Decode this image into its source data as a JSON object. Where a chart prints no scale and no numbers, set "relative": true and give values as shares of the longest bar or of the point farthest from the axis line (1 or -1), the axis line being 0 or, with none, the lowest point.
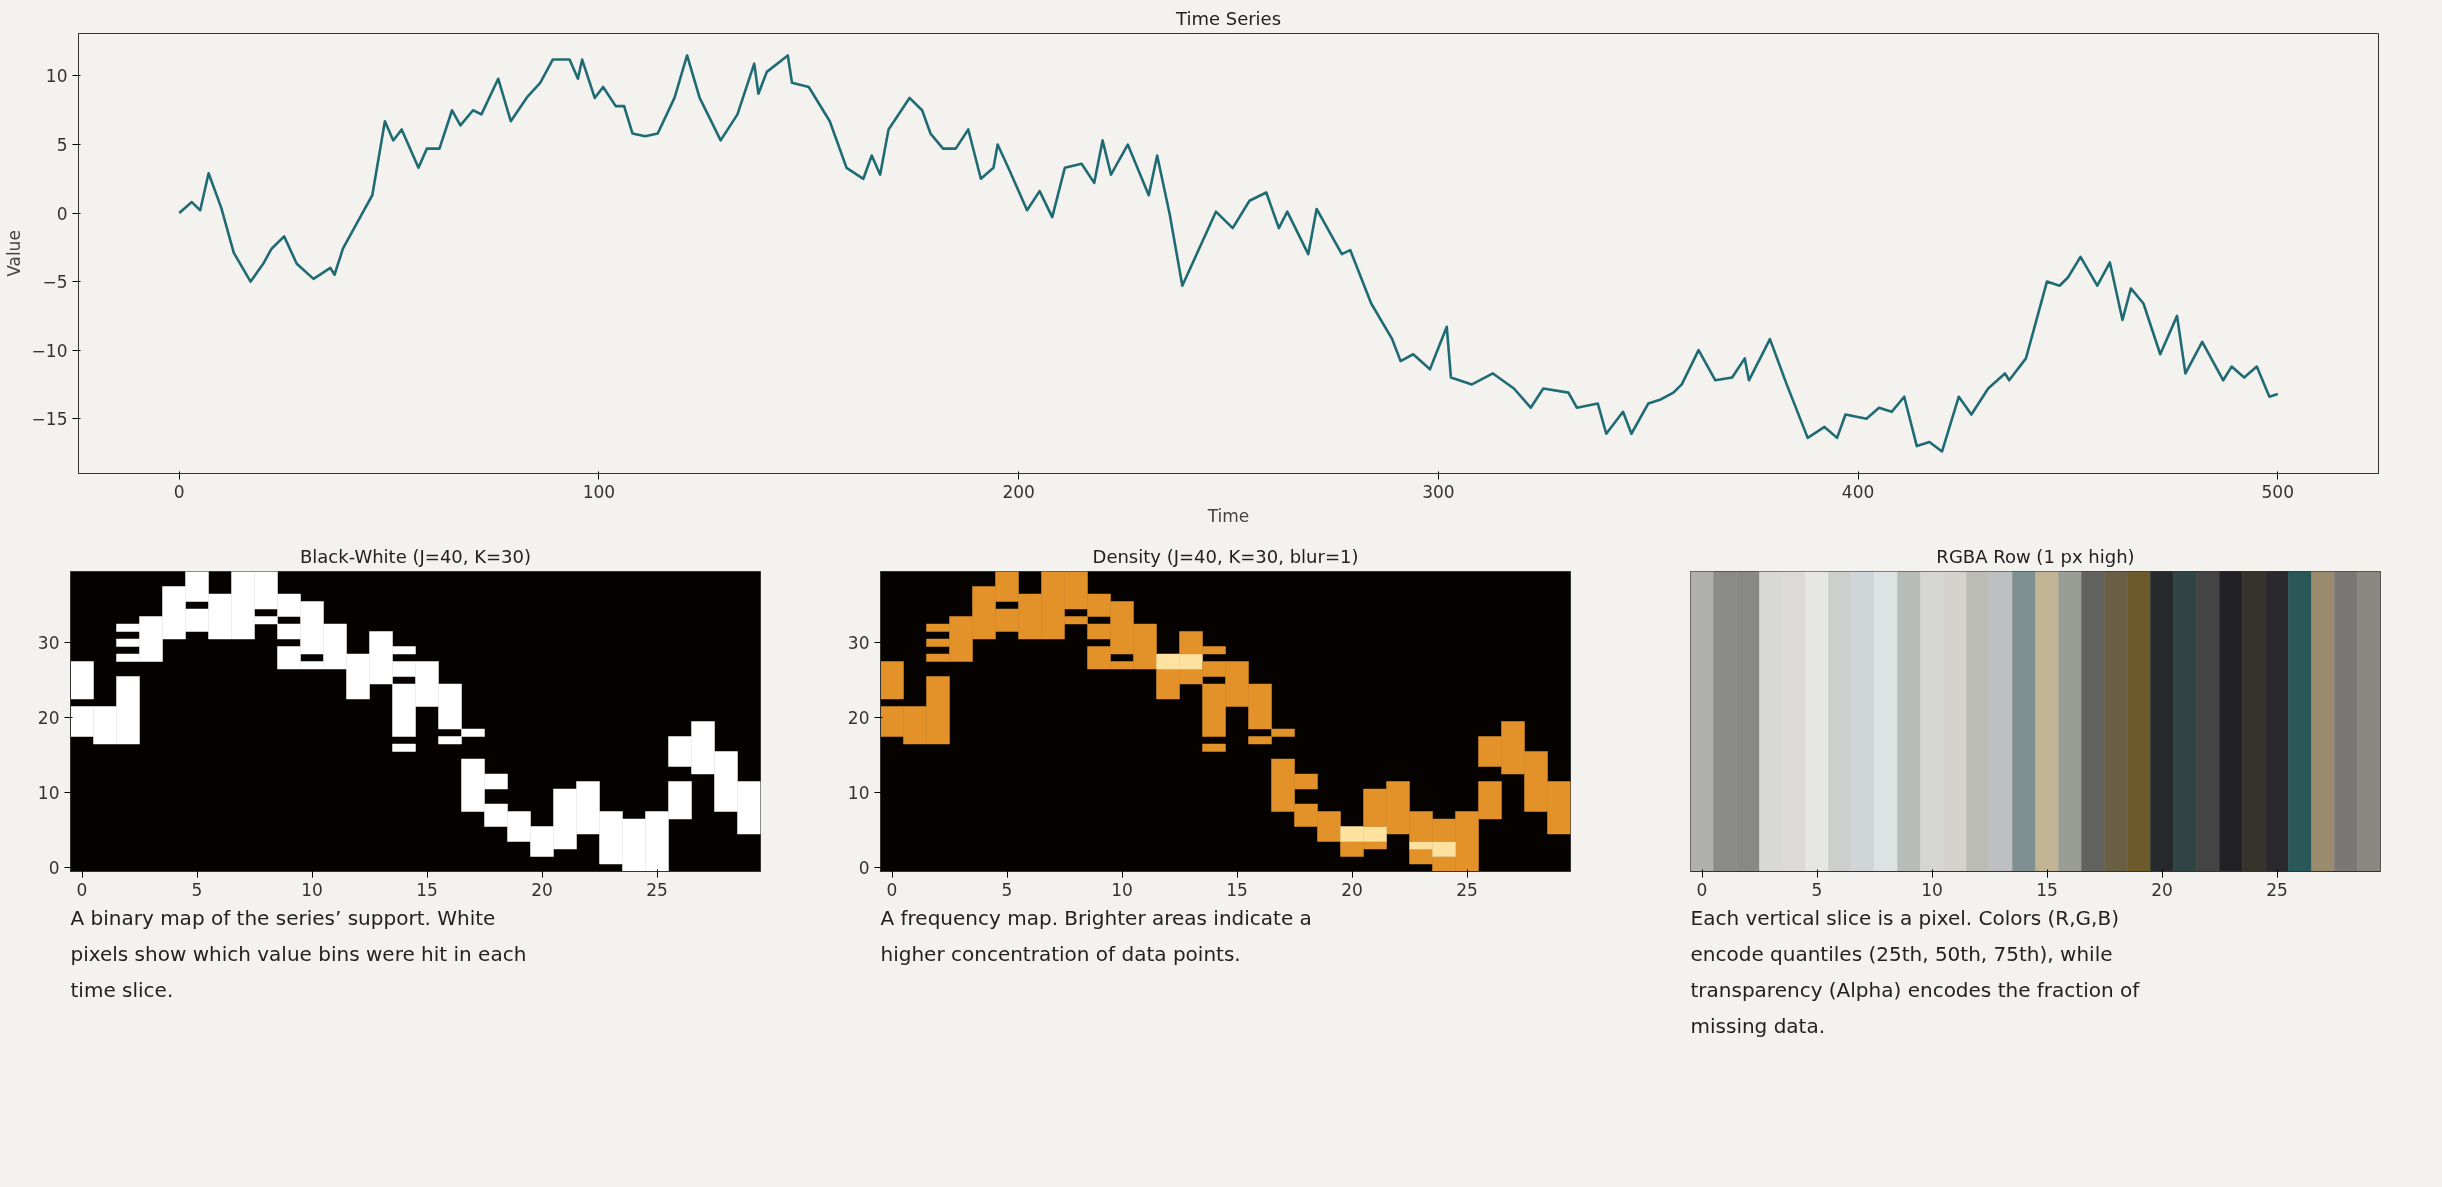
{
  "chart_data": [
    {
      "type": "line",
      "title": "Time Series",
      "xlabel": "Time",
      "ylabel": "Value",
      "xlim": [
        -24,
        524
      ],
      "ylim": [
        -19,
        13.1
      ],
      "xticks": [
        0,
        100,
        200,
        300,
        400,
        500
      ],
      "yticks": [
        {
          "value": -15,
          "label": "−15"
        },
        {
          "value": -10,
          "label": "−10"
        },
        {
          "value": -5,
          "label": "−5"
        },
        0,
        5,
        10
      ],
      "series": [
        {
          "color": "#1f6b74",
          "x": [
            0,
            3,
            5,
            7,
            10,
            13,
            17,
            20,
            22,
            25,
            28,
            32,
            36,
            37,
            39,
            44,
            46,
            49,
            51,
            53,
            57,
            59,
            62,
            65,
            67,
            70,
            72,
            76,
            79,
            83,
            86,
            89,
            93,
            95,
            96,
            99,
            101,
            104,
            106,
            108,
            111,
            114,
            118,
            121,
            124,
            129,
            133,
            137,
            138,
            140,
            145,
            146,
            150,
            155,
            159,
            163,
            165,
            167,
            169,
            174,
            177,
            179,
            182,
            185,
            188,
            191,
            194,
            195,
            198,
            202,
            205,
            208,
            211,
            215,
            218,
            220,
            222,
            226,
            231,
            233,
            236,
            239,
            247,
            251,
            255,
            259,
            262,
            264,
            269,
            271,
            277,
            279,
            284,
            289,
            291,
            294,
            298,
            302,
            303,
            308,
            313,
            318,
            322,
            325,
            331,
            333,
            338,
            340,
            344,
            346,
            350,
            353,
            356,
            358,
            362,
            366,
            370,
            373,
            374,
            379,
            383,
            388,
            392,
            395,
            397,
            402,
            405,
            408,
            411,
            414,
            417,
            420,
            424,
            427,
            431,
            435,
            436,
            440,
            445,
            448,
            450,
            453,
            457,
            460,
            463,
            465,
            468,
            472,
            476,
            478,
            482,
            487,
            489,
            492,
            495,
            498,
            500
          ],
          "values": [
            0,
            0.8,
            0.2,
            2.9,
            0.4,
            -2.9,
            -5,
            -3.7,
            -2.6,
            -1.7,
            -3.7,
            -4.8,
            -4,
            -4.5,
            -2.6,
            0.2,
            1.3,
            6.7,
            5.3,
            6.1,
            3.3,
            4.7,
            4.7,
            7.5,
            6.4,
            7.5,
            7.2,
            9.8,
            6.7,
            8.5,
            9.5,
            11.2,
            11.2,
            9.8,
            11.2,
            8.4,
            9.2,
            7.8,
            7.8,
            5.8,
            5.6,
            5.8,
            8.4,
            11.5,
            8.4,
            5.3,
            7.2,
            10.9,
            8.7,
            10.3,
            11.5,
            9.5,
            9.2,
            6.7,
            3.3,
            2.5,
            4.2,
            2.8,
            6.1,
            8.4,
            7.5,
            5.8,
            4.7,
            4.7,
            6.1,
            2.5,
            3.3,
            5,
            3,
            0.2,
            1.6,
            -0.3,
            3.3,
            3.6,
            2.2,
            5.3,
            2.8,
            5,
            1.3,
            4.2,
            -0.1,
            -5.3,
            0.1,
            -1.1,
            0.9,
            1.5,
            -1.1,
            0.1,
            -3,
            0.3,
            -3,
            -2.7,
            -6.6,
            -9.2,
            -10.8,
            -10.3,
            -11.4,
            -8.3,
            -12,
            -12.5,
            -11.7,
            -12.8,
            -14.2,
            -12.8,
            -13.1,
            -14.2,
            -13.9,
            -16.1,
            -14.5,
            -16.1,
            -13.9,
            -13.6,
            -13.1,
            -12.5,
            -10,
            -12.2,
            -12,
            -10.6,
            -12.2,
            -9.2,
            -12.5,
            -16.4,
            -15.6,
            -16.4,
            -14.7,
            -15,
            -14.2,
            -14.5,
            -13.4,
            -17,
            -16.7,
            -17.4,
            -13.4,
            -14.7,
            -12.8,
            -11.7,
            -12.2,
            -10.6,
            -5,
            -5.3,
            -4.7,
            -3.2,
            -5.3,
            -3.6,
            -7.8,
            -5.5,
            -6.6,
            -10.3,
            -7.5,
            -11.7,
            -9.4,
            -12.2,
            -11.2,
            -12,
            -11.2,
            -13.4,
            -13.2
          ]
        }
      ]
    },
    {
      "type": "bar",
      "title": "Black-White (J=40, K=30)",
      "annotations": [
        "A binary map of the series’ support. White pixels show which value bins were hit in each time slice."
      ],
      "x": [
        0,
        1,
        2,
        3,
        4,
        5,
        6,
        7,
        8,
        9,
        10,
        11,
        12,
        13,
        14,
        15,
        16,
        17,
        18,
        19,
        20,
        21,
        22,
        23,
        24,
        25,
        26,
        27,
        28,
        29
      ],
      "xlim": [
        -0.5,
        29.5
      ],
      "ylim": [
        -0.5,
        39.5
      ],
      "xticks": [
        0,
        5,
        10,
        15,
        20,
        25
      ],
      "yticks": [
        0,
        10,
        20,
        30
      ],
      "series": [
        {
          "color": "#ffffff",
          "base": [
            17.5,
            16.5,
            16.5,
            27.5,
            30.5,
            31.5,
            30.5,
            30.5,
            32.5,
            26.5,
            26.5,
            26.5,
            22.5,
            24.5,
            15.5,
            21.5,
            16.5,
            7.5,
            5.5,
            3.5,
            1.5,
            2.5,
            4.5,
            0.5,
            -0.5,
            -0.5,
            6.5,
            12.5,
            7.5,
            4.5
          ],
          "values": [
            4,
            5,
            9,
            6,
            7,
            3,
            6,
            9,
            1,
            3,
            1,
            6,
            6,
            7,
            1,
            6,
            1,
            7,
            3,
            4,
            4,
            8,
            7,
            7,
            7,
            8,
            5,
            7,
            8,
            7
          ]
        },
        {
          "color": "#ffffff",
          "base": [
            22.5,
            null,
            27.5,
            null,
            null,
            35.5,
            null,
            null,
            34.5,
            30.5,
            28.5,
            null,
            null,
            null,
            17.5,
            null,
            18.5,
            17.5,
            10.5,
            null,
            null,
            null,
            null,
            null,
            null,
            null,
            13.5,
            null,
            null,
            null
          ],
          "values": [
            5,
            null,
            1,
            null,
            null,
            4,
            null,
            null,
            5,
            2,
            7,
            null,
            null,
            null,
            7,
            null,
            6,
            1,
            2,
            null,
            null,
            null,
            null,
            null,
            null,
            null,
            4,
            null,
            null,
            null
          ]
        },
        {
          "color": "#ffffff",
          "base": [
            null,
            null,
            29.5,
            null,
            null,
            null,
            null,
            null,
            null,
            33.5,
            null,
            null,
            null,
            null,
            25.5,
            null,
            null,
            null,
            null,
            null,
            null,
            null,
            null,
            null,
            null,
            null,
            null,
            null,
            null,
            null
          ],
          "values": [
            null,
            null,
            1,
            null,
            null,
            null,
            null,
            null,
            null,
            3,
            null,
            null,
            null,
            null,
            2,
            null,
            null,
            null,
            null,
            null,
            null,
            null,
            null,
            null,
            null,
            null,
            null,
            null,
            null,
            null
          ]
        },
        {
          "color": "#ffffff",
          "base": [
            null,
            null,
            31.5,
            null,
            null,
            null,
            null,
            null,
            null,
            null,
            null,
            null,
            null,
            null,
            28.5,
            null,
            null,
            null,
            null,
            null,
            null,
            null,
            null,
            null,
            null,
            null,
            null,
            null,
            null,
            null
          ],
          "values": [
            null,
            null,
            1,
            null,
            null,
            null,
            null,
            null,
            null,
            null,
            null,
            null,
            null,
            null,
            1,
            null,
            null,
            null,
            null,
            null,
            null,
            null,
            null,
            null,
            null,
            null,
            null,
            null,
            null,
            null
          ]
        }
      ]
    },
    {
      "type": "bar",
      "title": "Density (J=40, K=30, blur=1)",
      "annotations": [
        "A frequency map. Brighter areas indicate a higher concentration of data points."
      ],
      "x": [
        0,
        1,
        2,
        3,
        4,
        5,
        6,
        7,
        8,
        9,
        10,
        11,
        12,
        13,
        14,
        15,
        16,
        17,
        18,
        19,
        20,
        21,
        22,
        23,
        24,
        25,
        26,
        27,
        28,
        29
      ],
      "xlim": [
        -0.5,
        29.5
      ],
      "ylim": [
        -0.5,
        39.5
      ],
      "xticks": [
        0,
        5,
        10,
        15,
        20,
        25
      ],
      "yticks": [
        0,
        10,
        20,
        30
      ],
      "series": [
        {
          "color": "#e3922a",
          "base": [
            17.5,
            16.5,
            16.5,
            27.5,
            30.5,
            31.5,
            30.5,
            30.5,
            32.5,
            26.5,
            26.5,
            26.5,
            22.5,
            24.5,
            15.5,
            21.5,
            16.5,
            7.5,
            5.5,
            3.5,
            1.5,
            2.5,
            4.5,
            0.5,
            -0.5,
            -0.5,
            6.5,
            12.5,
            7.5,
            4.5
          ],
          "values": [
            4,
            5,
            9,
            6,
            7,
            3,
            6,
            9,
            1,
            3,
            1,
            6,
            4,
            2,
            1,
            6,
            1,
            7,
            3,
            4,
            2,
            1,
            7,
            2,
            2,
            8,
            5,
            7,
            8,
            7
          ]
        },
        {
          "colors": [
            "#e3922a",
            "#e3922a",
            "#e3922a",
            "#e3922a",
            "#e3922a",
            "#e3922a",
            "#e3922a",
            "#e3922a",
            "#e3922a",
            "#e3922a",
            "#e3922a",
            "#e3922a",
            "#ffe2a0",
            "#ffe2a0",
            "#e3922a",
            "#e3922a",
            "#e3922a",
            "#e3922a",
            "#e3922a",
            "#e3922a",
            "#ffe2a0",
            "#ffe2a0",
            "#e3922a",
            "#ffe2a0",
            "#ffe2a0",
            "#e3922a",
            "#e3922a",
            "#e3922a",
            "#e3922a",
            "#e3922a"
          ],
          "base": [
            22.5,
            null,
            27.5,
            null,
            null,
            35.5,
            null,
            null,
            34.5,
            30.5,
            28.5,
            null,
            26.5,
            26.5,
            17.5,
            null,
            18.5,
            17.5,
            10.5,
            null,
            3.5,
            3.5,
            null,
            2.5,
            1.5,
            null,
            13.5,
            null,
            null,
            null
          ],
          "values": [
            5,
            null,
            1,
            null,
            null,
            4,
            null,
            null,
            5,
            2,
            7,
            null,
            2,
            2,
            7,
            null,
            6,
            1,
            2,
            null,
            2,
            2,
            null,
            1,
            2,
            null,
            4,
            null,
            null,
            null
          ]
        },
        {
          "color": "#e3922a",
          "base": [
            null,
            null,
            29.5,
            null,
            null,
            null,
            null,
            null,
            null,
            33.5,
            null,
            null,
            null,
            28.5,
            25.5,
            null,
            null,
            null,
            null,
            null,
            null,
            5.5,
            null,
            3.5,
            3.5,
            null,
            null,
            null,
            null,
            null
          ],
          "values": [
            null,
            null,
            1,
            null,
            null,
            null,
            null,
            null,
            null,
            3,
            null,
            null,
            null,
            3,
            2,
            null,
            null,
            null,
            null,
            null,
            null,
            5,
            null,
            4,
            3,
            null,
            null,
            null,
            null,
            null
          ]
        },
        {
          "color": "#e3922a",
          "base": [
            null,
            null,
            31.5,
            null,
            null,
            null,
            null,
            null,
            null,
            null,
            null,
            null,
            null,
            null,
            28.5,
            null,
            null,
            null,
            null,
            null,
            null,
            null,
            null,
            null,
            null,
            null,
            null,
            null,
            null,
            null
          ],
          "values": [
            null,
            null,
            1,
            null,
            null,
            null,
            null,
            null,
            null,
            null,
            null,
            null,
            null,
            null,
            1,
            null,
            null,
            null,
            null,
            null,
            null,
            null,
            null,
            null,
            null,
            null,
            null,
            null,
            null,
            null
          ]
        }
      ]
    },
    {
      "type": "bar",
      "title": "RGBA Row (1 px high)",
      "relative": true,
      "annotations": [
        "Each vertical slice is a pixel. Colors (R,G,B) encode quantiles (25th, 50th, 75th), while transparency (Alpha) encodes the fraction of missing data."
      ],
      "x": [
        0,
        1,
        2,
        3,
        4,
        5,
        6,
        7,
        8,
        9,
        10,
        11,
        12,
        13,
        14,
        15,
        16,
        17,
        18,
        19,
        20,
        21,
        22,
        23,
        24,
        25,
        26,
        27,
        28,
        29
      ],
      "xlim": [
        -0.5,
        29.5
      ],
      "xticks": [
        0,
        5,
        10,
        15,
        20,
        25
      ],
      "values": [
        1,
        1,
        1,
        1,
        1,
        1,
        1,
        1,
        1,
        1,
        1,
        1,
        1,
        1,
        1,
        1,
        1,
        1,
        1,
        1,
        1,
        1,
        1,
        1,
        1,
        1,
        1,
        1,
        1,
        1
      ],
      "colors": [
        "#b0b0ac",
        "#8a8a88",
        "#888886",
        "#d8d8d4",
        "#dcd9d6",
        "#e6e7e3",
        "#cdcfcc",
        "#d0d6d8",
        "#dde2e2",
        "#b8bcb8",
        "#d6d6d4",
        "#d6d2cd",
        "#bcbcb6",
        "#bcc0c0",
        "#7e9090",
        "#c0b494",
        "#9a9c96",
        "#626260",
        "#6a5e44",
        "#6c5a2c",
        "#262a2a",
        "#304444",
        "#444444",
        "#222226",
        "#34342c",
        "#2a2a2e",
        "#2a5858",
        "#9a8a6e",
        "#7a7876",
        "#8a8680"
      ]
    }
  ]
}
